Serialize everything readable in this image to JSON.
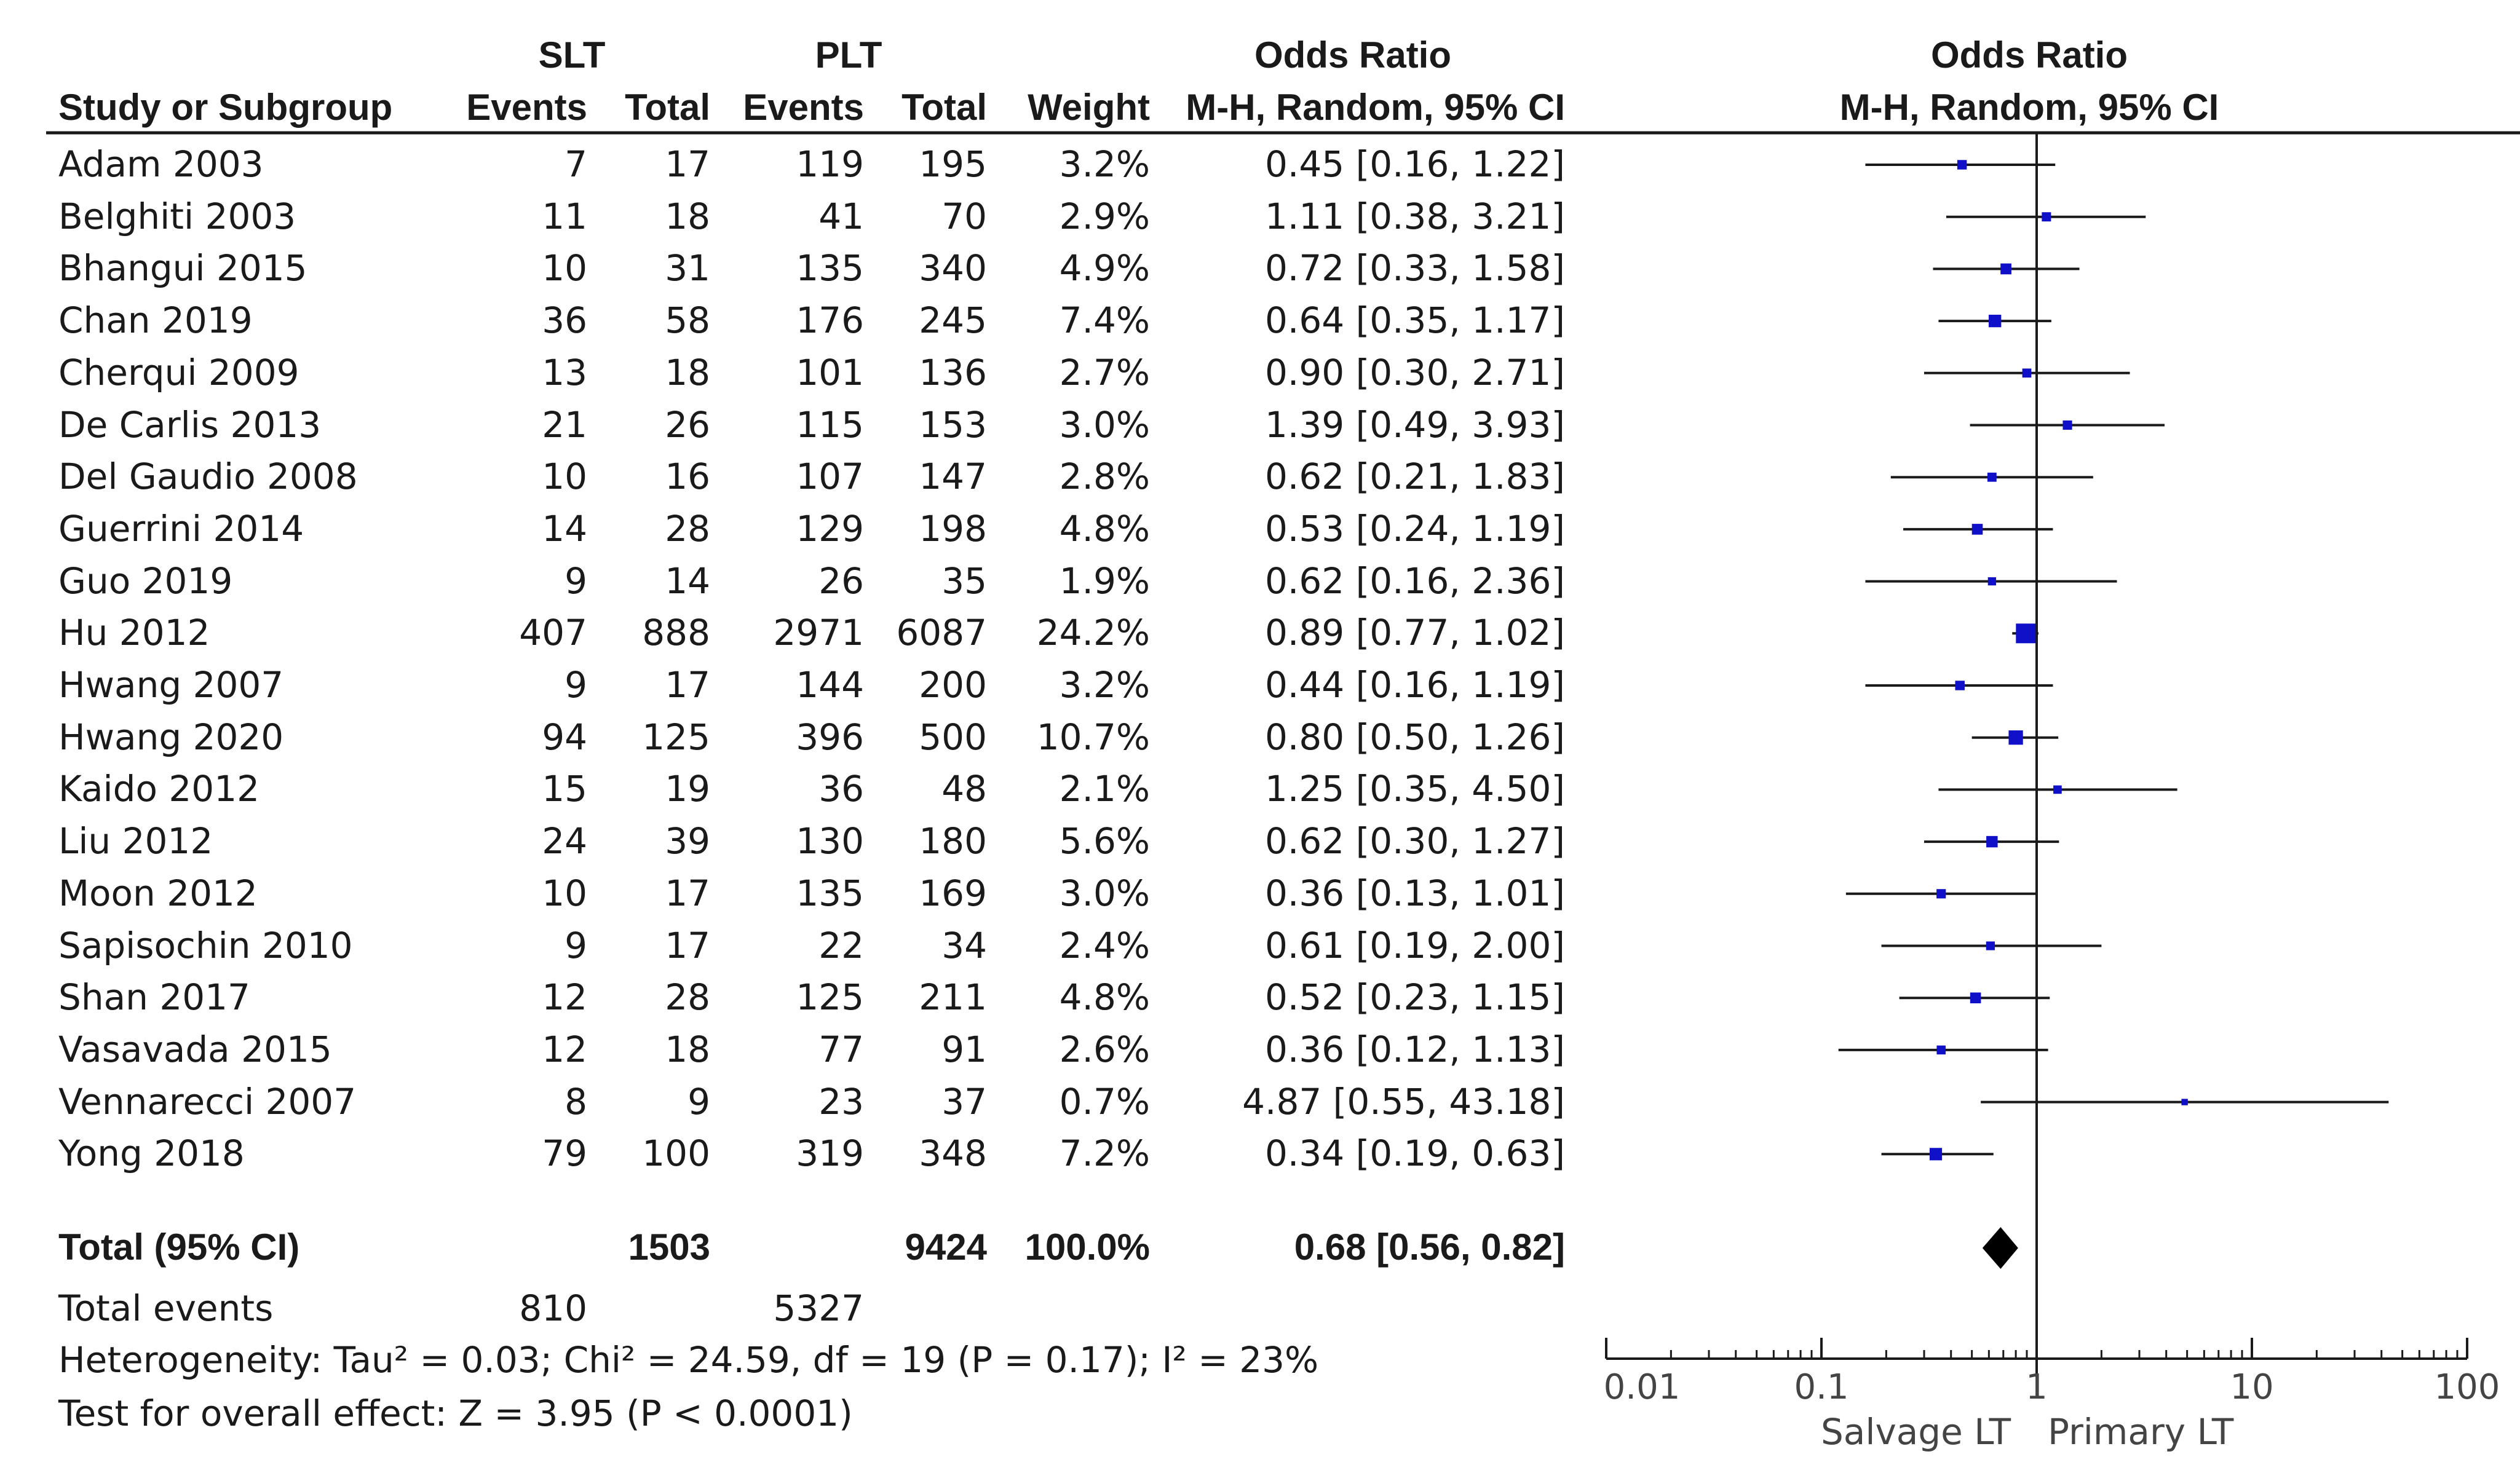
{
  "headers": {
    "slt": "SLT",
    "plt": "PLT",
    "odds_ratio": "Odds Ratio",
    "odds_ratio_plot": "Odds Ratio",
    "study": "Study or Subgroup",
    "events1": "Events",
    "total1": "Total",
    "events2": "Events",
    "total2": "Total",
    "weight": "Weight",
    "method": "M-H, Random, 95% CI",
    "method_plot": "M-H, Random, 95% CI"
  },
  "total_row": {
    "label": "Total (95% CI)",
    "slt_total": "1503",
    "plt_total": "9424",
    "weight": "100.0%",
    "ci": "0.68 [0.56, 0.82]"
  },
  "total_events": {
    "label": "Total events",
    "slt": "810",
    "plt": "5327"
  },
  "heterogeneity": "Heterogeneity: Tau² = 0.03; Chi² = 24.59, df = 19 (P = 0.17); I² = 23%",
  "overall_effect": "Test for overall effect: Z = 3.95 (P < 0.0001)",
  "chart_data": {
    "type": "forest",
    "title": "Odds Ratio",
    "method": "M-H, Random, 95% CI",
    "x_scale": "log",
    "xlim": [
      0.01,
      100
    ],
    "x_ticks": [
      "0.01",
      "0.1",
      "1",
      "10",
      "100"
    ],
    "favours_left": "Salvage LT",
    "favours_right": "Primary LT",
    "studies": [
      {
        "name": "Adam 2003",
        "e1": "7",
        "n1": "17",
        "e2": "119",
        "n2": "195",
        "weight": "3.2%",
        "ci_text": "0.45 [0.16, 1.22]",
        "or": 0.45,
        "lo": 0.16,
        "hi": 1.22,
        "w": 3.2
      },
      {
        "name": "Belghiti 2003",
        "e1": "11",
        "n1": "18",
        "e2": "41",
        "n2": "70",
        "weight": "2.9%",
        "ci_text": "1.11 [0.38, 3.21]",
        "or": 1.11,
        "lo": 0.38,
        "hi": 3.21,
        "w": 2.9
      },
      {
        "name": "Bhangui 2015",
        "e1": "10",
        "n1": "31",
        "e2": "135",
        "n2": "340",
        "weight": "4.9%",
        "ci_text": "0.72 [0.33, 1.58]",
        "or": 0.72,
        "lo": 0.33,
        "hi": 1.58,
        "w": 4.9
      },
      {
        "name": "Chan 2019",
        "e1": "36",
        "n1": "58",
        "e2": "176",
        "n2": "245",
        "weight": "7.4%",
        "ci_text": "0.64 [0.35, 1.17]",
        "or": 0.64,
        "lo": 0.35,
        "hi": 1.17,
        "w": 7.4
      },
      {
        "name": "Cherqui 2009",
        "e1": "13",
        "n1": "18",
        "e2": "101",
        "n2": "136",
        "weight": "2.7%",
        "ci_text": "0.90 [0.30, 2.71]",
        "or": 0.9,
        "lo": 0.3,
        "hi": 2.71,
        "w": 2.7
      },
      {
        "name": "De Carlis 2013",
        "e1": "21",
        "n1": "26",
        "e2": "115",
        "n2": "153",
        "weight": "3.0%",
        "ci_text": "1.39 [0.49, 3.93]",
        "or": 1.39,
        "lo": 0.49,
        "hi": 3.93,
        "w": 3.0
      },
      {
        "name": "Del Gaudio 2008",
        "e1": "10",
        "n1": "16",
        "e2": "107",
        "n2": "147",
        "weight": "2.8%",
        "ci_text": "0.62 [0.21, 1.83]",
        "or": 0.62,
        "lo": 0.21,
        "hi": 1.83,
        "w": 2.8
      },
      {
        "name": "Guerrini 2014",
        "e1": "14",
        "n1": "28",
        "e2": "129",
        "n2": "198",
        "weight": "4.8%",
        "ci_text": "0.53 [0.24, 1.19]",
        "or": 0.53,
        "lo": 0.24,
        "hi": 1.19,
        "w": 4.8
      },
      {
        "name": "Guo 2019",
        "e1": "9",
        "n1": "14",
        "e2": "26",
        "n2": "35",
        "weight": "1.9%",
        "ci_text": "0.62 [0.16, 2.36]",
        "or": 0.62,
        "lo": 0.16,
        "hi": 2.36,
        "w": 1.9
      },
      {
        "name": "Hu 2012",
        "e1": "407",
        "n1": "888",
        "e2": "2971",
        "n2": "6087",
        "weight": "24.2%",
        "ci_text": "0.89 [0.77, 1.02]",
        "or": 0.89,
        "lo": 0.77,
        "hi": 1.02,
        "w": 24.2
      },
      {
        "name": "Hwang 2007",
        "e1": "9",
        "n1": "17",
        "e2": "144",
        "n2": "200",
        "weight": "3.2%",
        "ci_text": "0.44 [0.16, 1.19]",
        "or": 0.44,
        "lo": 0.16,
        "hi": 1.19,
        "w": 3.2
      },
      {
        "name": "Hwang 2020",
        "e1": "94",
        "n1": "125",
        "e2": "396",
        "n2": "500",
        "weight": "10.7%",
        "ci_text": "0.80 [0.50, 1.26]",
        "or": 0.8,
        "lo": 0.5,
        "hi": 1.26,
        "w": 10.7
      },
      {
        "name": "Kaido 2012",
        "e1": "15",
        "n1": "19",
        "e2": "36",
        "n2": "48",
        "weight": "2.1%",
        "ci_text": "1.25 [0.35, 4.50]",
        "or": 1.25,
        "lo": 0.35,
        "hi": 4.5,
        "w": 2.1
      },
      {
        "name": "Liu 2012",
        "e1": "24",
        "n1": "39",
        "e2": "130",
        "n2": "180",
        "weight": "5.6%",
        "ci_text": "0.62 [0.30, 1.27]",
        "or": 0.62,
        "lo": 0.3,
        "hi": 1.27,
        "w": 5.6
      },
      {
        "name": "Moon 2012",
        "e1": "10",
        "n1": "17",
        "e2": "135",
        "n2": "169",
        "weight": "3.0%",
        "ci_text": "0.36 [0.13, 1.01]",
        "or": 0.36,
        "lo": 0.13,
        "hi": 1.01,
        "w": 3.0
      },
      {
        "name": "Sapisochin 2010",
        "e1": "9",
        "n1": "17",
        "e2": "22",
        "n2": "34",
        "weight": "2.4%",
        "ci_text": "0.61 [0.19, 2.00]",
        "or": 0.61,
        "lo": 0.19,
        "hi": 2.0,
        "w": 2.4
      },
      {
        "name": "Shan 2017",
        "e1": "12",
        "n1": "28",
        "e2": "125",
        "n2": "211",
        "weight": "4.8%",
        "ci_text": "0.52 [0.23, 1.15]",
        "or": 0.52,
        "lo": 0.23,
        "hi": 1.15,
        "w": 4.8
      },
      {
        "name": "Vasavada 2015",
        "e1": "12",
        "n1": "18",
        "e2": "77",
        "n2": "91",
        "weight": "2.6%",
        "ci_text": "0.36 [0.12, 1.13]",
        "or": 0.36,
        "lo": 0.12,
        "hi": 1.13,
        "w": 2.6
      },
      {
        "name": "Vennarecci 2007",
        "e1": "8",
        "n1": "9",
        "e2": "23",
        "n2": "37",
        "weight": "0.7%",
        "ci_text": "4.87 [0.55, 43.18]",
        "or": 4.87,
        "lo": 0.55,
        "hi": 43.18,
        "w": 0.7
      },
      {
        "name": "Yong 2018",
        "e1": "79",
        "n1": "100",
        "e2": "319",
        "n2": "348",
        "weight": "7.2%",
        "ci_text": "0.34 [0.19, 0.63]",
        "or": 0.34,
        "lo": 0.19,
        "hi": 0.63,
        "w": 7.2
      }
    ],
    "overall": {
      "or": 0.68,
      "lo": 0.56,
      "hi": 0.82
    },
    "colors": {
      "marker": "#1010c8",
      "line": "#1a1a1a",
      "text": "#1a1a1a"
    }
  }
}
